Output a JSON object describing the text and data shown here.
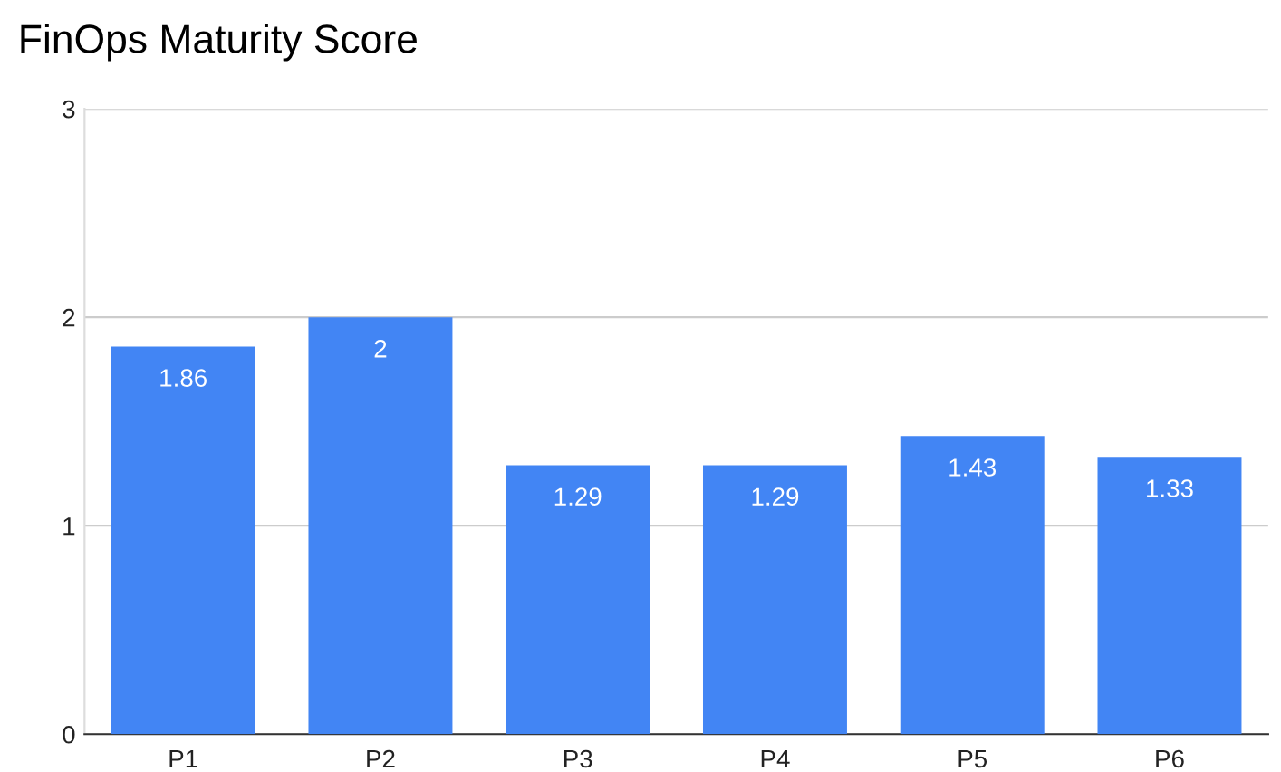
{
  "chart_data": {
    "type": "bar",
    "title": "FinOps Maturity Score",
    "categories": [
      "P1",
      "P2",
      "P3",
      "P4",
      "P5",
      "P6"
    ],
    "values": [
      1.86,
      2,
      1.29,
      1.29,
      1.43,
      1.33
    ],
    "color": "#4285f4",
    "ylim": [
      0,
      3
    ],
    "yticks": [
      0,
      1,
      2,
      3
    ],
    "grid": "y",
    "data_labels": true,
    "legend": false
  }
}
